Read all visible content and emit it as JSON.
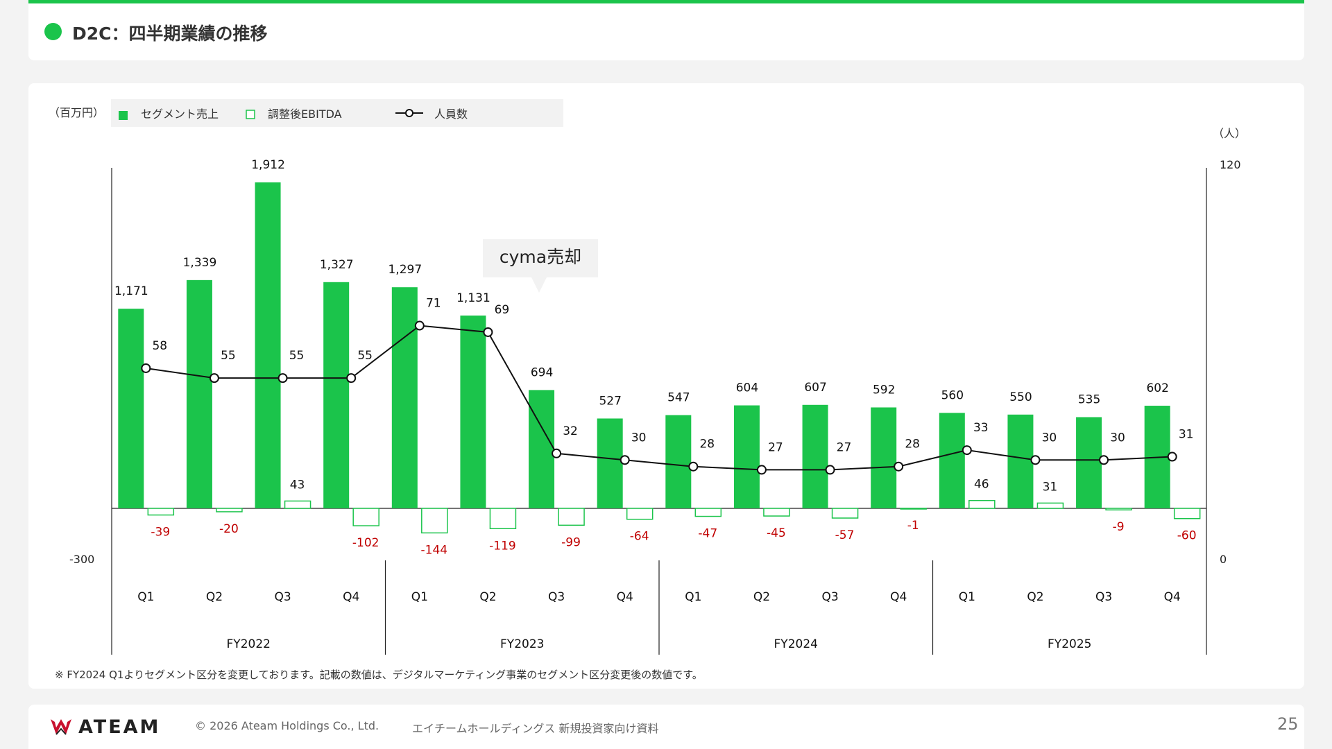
{
  "header": {
    "title": "D2C：四半期業績の推移"
  },
  "chart_data": {
    "type": "bar",
    "left_unit": "（百万円）",
    "right_unit": "（人）",
    "left_axis_label_min": "-300",
    "right_axis_label_min": "0",
    "right_axis_label_max": "120",
    "ylim_left": [
      -300,
      1912
    ],
    "ylim_right": [
      0,
      120
    ],
    "legend": [
      {
        "name": "セグメント売上",
        "kind": "filled-square",
        "color": "#1bc44b"
      },
      {
        "name": "調整後EBITDA",
        "kind": "hollow-square",
        "color": "#1bc44b"
      },
      {
        "name": "人員数",
        "kind": "line-marker",
        "color": "#111111"
      }
    ],
    "categories": [
      "Q1",
      "Q2",
      "Q3",
      "Q4",
      "Q1",
      "Q2",
      "Q3",
      "Q4",
      "Q1",
      "Q2",
      "Q3",
      "Q4",
      "Q1",
      "Q2",
      "Q3",
      "Q4"
    ],
    "fiscal_years": [
      "FY2022",
      "FY2023",
      "FY2024",
      "FY2025"
    ],
    "series": [
      {
        "name": "セグメント売上",
        "values": [
          1171,
          1339,
          1912,
          1327,
          1297,
          1131,
          694,
          527,
          547,
          604,
          607,
          592,
          560,
          550,
          535,
          602
        ],
        "labels": [
          "1,171",
          "1,339",
          "1,912",
          "1,327",
          "1,297",
          "1,131",
          "694",
          "527",
          "547",
          "604",
          "607",
          "592",
          "560",
          "550",
          "535",
          "602"
        ]
      },
      {
        "name": "調整後EBITDA",
        "values": [
          -39,
          -20,
          43,
          -102,
          -144,
          -119,
          -99,
          -64,
          -47,
          -45,
          -57,
          -1,
          46,
          31,
          -9,
          -60
        ],
        "labels": [
          "-39",
          "-20",
          "43",
          "-102",
          "-144",
          "-119",
          "-99",
          "-64",
          "-47",
          "-45",
          "-57",
          "-1",
          "46",
          "31",
          "-9",
          "-60"
        ]
      },
      {
        "name": "人員数",
        "values": [
          58,
          55,
          55,
          55,
          71,
          69,
          32,
          30,
          28,
          27,
          27,
          28,
          33,
          30,
          30,
          31
        ],
        "labels": [
          "58",
          "55",
          "55",
          "55",
          "71",
          "69",
          "32",
          "30",
          "28",
          "27",
          "27",
          "28",
          "33",
          "30",
          "30",
          "31"
        ]
      }
    ],
    "annotation": {
      "text": "cyma売却"
    },
    "note": "※ FY2024 Q1よりセグメント区分を変更しております。記載の数値は、デジタルマーケティング事業のセグメント区分変更後の数値です。",
    "colors": {
      "bar": "#1bc44b",
      "negative_label": "#c00000",
      "line": "#111111"
    }
  },
  "footer": {
    "logo_text": "ATEAM",
    "copyright": "© 2026 Ateam Holdings Co., Ltd.",
    "document": "エイチームホールディングス 新規投資家向け資料",
    "page": "25"
  }
}
